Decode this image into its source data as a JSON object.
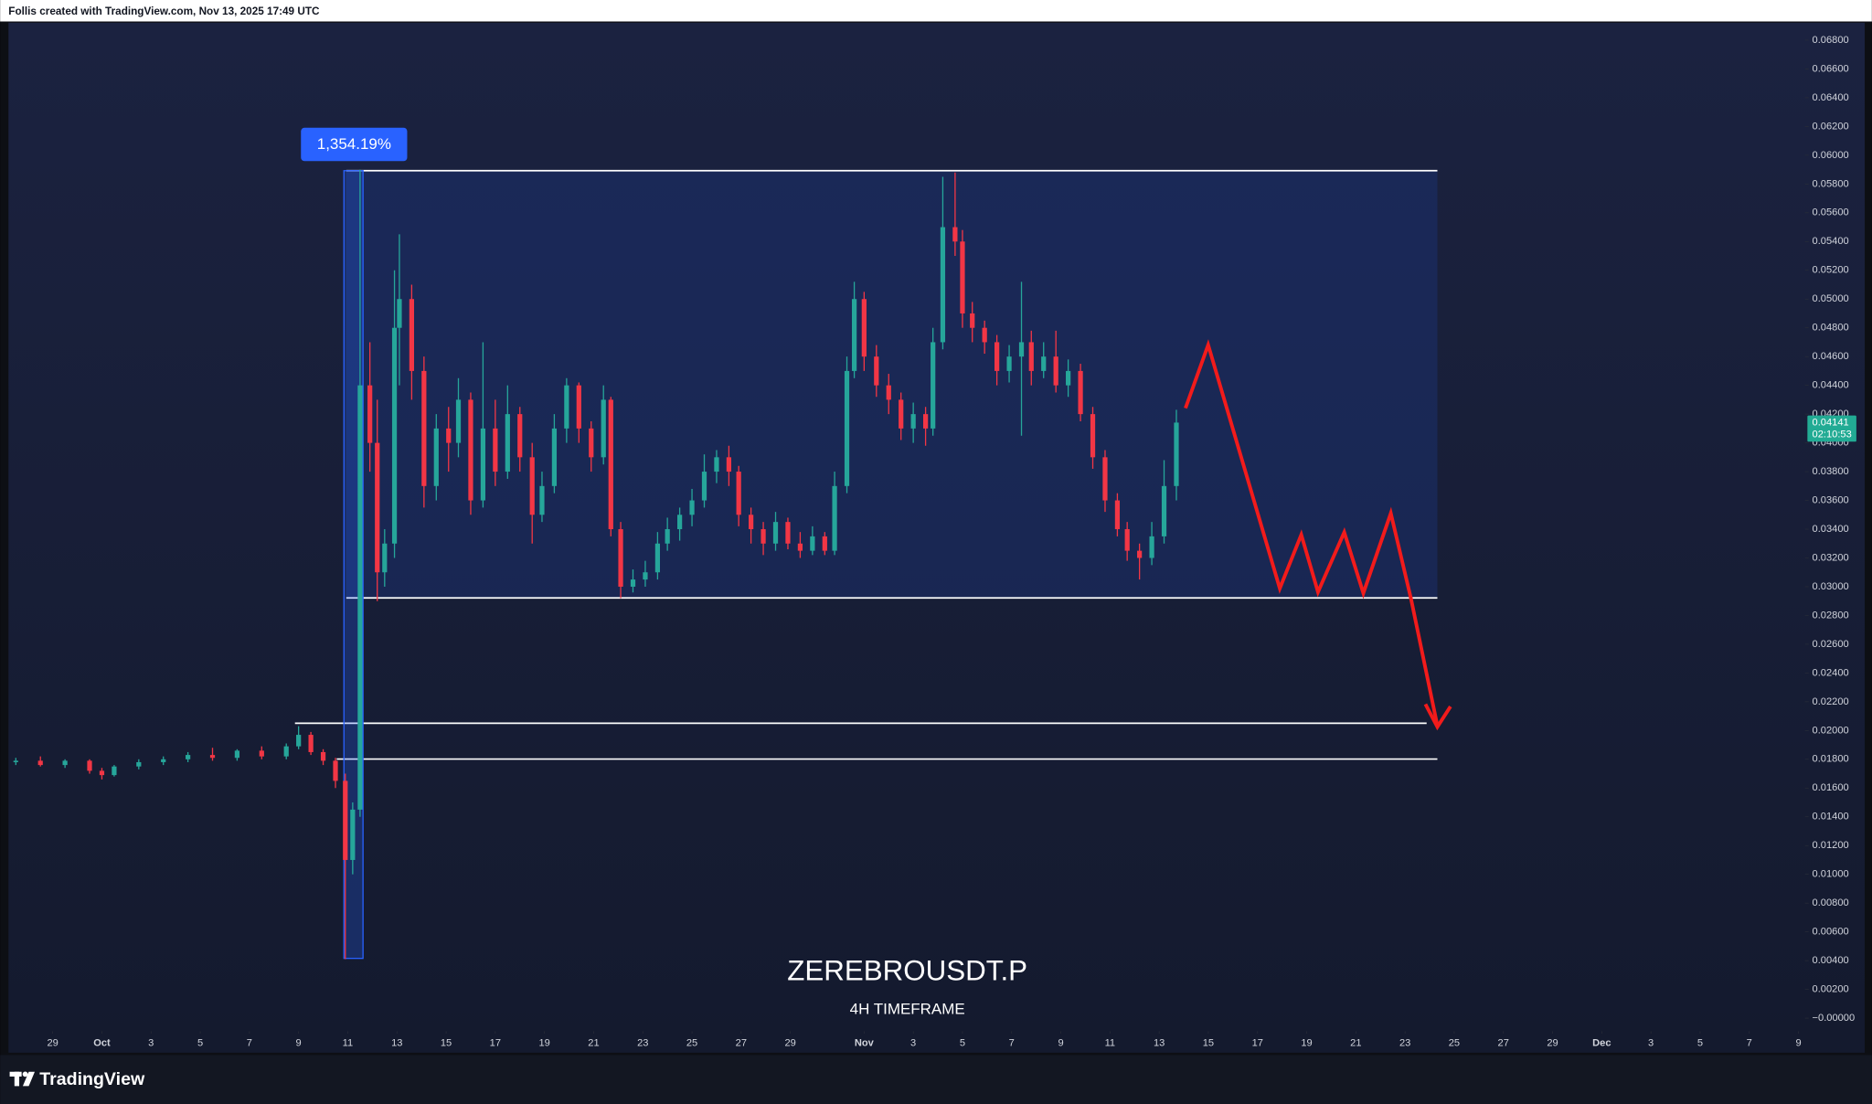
{
  "header": "Follis created with TradingView.com, Nov 13, 2025 17:49 UTC",
  "logo": "TradingView",
  "chart_data": {
    "type": "candlestick",
    "title": "ZEREBROUSDT.P",
    "subtitle": "4H TIMEFRAME",
    "annotation": "1,354.19%",
    "last_price": {
      "value": 0.04141,
      "label": "0.04141"
    },
    "countdown": "02:10:53",
    "up_color": "#26a69a",
    "down_color": "#f23645",
    "grid": false,
    "xlim": [
      -1.75,
      71.17
    ],
    "ylim": [
      -0.0024,
      0.0693
    ],
    "xticks": [
      {
        "value": 0,
        "label": "29"
      },
      {
        "value": 2,
        "label": "Oct"
      },
      {
        "value": 4,
        "label": "3"
      },
      {
        "value": 6,
        "label": "5"
      },
      {
        "value": 8,
        "label": "7"
      },
      {
        "value": 10,
        "label": "9"
      },
      {
        "value": 12,
        "label": "11"
      },
      {
        "value": 14,
        "label": "13"
      },
      {
        "value": 16,
        "label": "15"
      },
      {
        "value": 18,
        "label": "17"
      },
      {
        "value": 20,
        "label": "19"
      },
      {
        "value": 22,
        "label": "21"
      },
      {
        "value": 24,
        "label": "23"
      },
      {
        "value": 26,
        "label": "25"
      },
      {
        "value": 28,
        "label": "27"
      },
      {
        "value": 30,
        "label": "29"
      },
      {
        "value": 33,
        "label": "Nov"
      },
      {
        "value": 35,
        "label": "3"
      },
      {
        "value": 37,
        "label": "5"
      },
      {
        "value": 39,
        "label": "7"
      },
      {
        "value": 41,
        "label": "9"
      },
      {
        "value": 43,
        "label": "11"
      },
      {
        "value": 45,
        "label": "13"
      },
      {
        "value": 47,
        "label": "15"
      },
      {
        "value": 49,
        "label": "17"
      },
      {
        "value": 51,
        "label": "19"
      },
      {
        "value": 53,
        "label": "21"
      },
      {
        "value": 55,
        "label": "23"
      },
      {
        "value": 57,
        "label": "25"
      },
      {
        "value": 59,
        "label": "27"
      },
      {
        "value": 61,
        "label": "29"
      },
      {
        "value": 63,
        "label": "Dec"
      },
      {
        "value": 65,
        "label": "3"
      },
      {
        "value": 67,
        "label": "5"
      },
      {
        "value": 69,
        "label": "7"
      },
      {
        "value": 71,
        "label": "9"
      }
    ],
    "yticks": [
      {
        "value": 0.068,
        "label": "0.06800"
      },
      {
        "value": 0.066,
        "label": "0.06600"
      },
      {
        "value": 0.064,
        "label": "0.06400"
      },
      {
        "value": 0.062,
        "label": "0.06200"
      },
      {
        "value": 0.06,
        "label": "0.06000"
      },
      {
        "value": 0.058,
        "label": "0.05800"
      },
      {
        "value": 0.056,
        "label": "0.05600"
      },
      {
        "value": 0.054,
        "label": "0.05400"
      },
      {
        "value": 0.052,
        "label": "0.05200"
      },
      {
        "value": 0.05,
        "label": "0.05000"
      },
      {
        "value": 0.048,
        "label": "0.04800"
      },
      {
        "value": 0.046,
        "label": "0.04600"
      },
      {
        "value": 0.044,
        "label": "0.04400"
      },
      {
        "value": 0.042,
        "label": "0.04200"
      },
      {
        "value": 0.04,
        "label": "0.04000"
      },
      {
        "value": 0.038,
        "label": "0.03800"
      },
      {
        "value": 0.036,
        "label": "0.03600"
      },
      {
        "value": 0.034,
        "label": "0.03400"
      },
      {
        "value": 0.032,
        "label": "0.03200"
      },
      {
        "value": 0.03,
        "label": "0.03000"
      },
      {
        "value": 0.028,
        "label": "0.02800"
      },
      {
        "value": 0.026,
        "label": "0.02600"
      },
      {
        "value": 0.024,
        "label": "0.02400"
      },
      {
        "value": 0.022,
        "label": "0.02200"
      },
      {
        "value": 0.02,
        "label": "0.02000"
      },
      {
        "value": 0.018,
        "label": "0.01800"
      },
      {
        "value": 0.016,
        "label": "0.01600"
      },
      {
        "value": 0.014,
        "label": "0.01400"
      },
      {
        "value": 0.012,
        "label": "0.01200"
      },
      {
        "value": 0.01,
        "label": "0.01000"
      },
      {
        "value": 0.008,
        "label": "0.00800"
      },
      {
        "value": 0.006,
        "label": "0.00600"
      },
      {
        "value": 0.004,
        "label": "0.00400"
      },
      {
        "value": 0.002,
        "label": "0.00200"
      },
      {
        "value": 0,
        "label": "−0.00000"
      }
    ],
    "candles": [
      [
        -1.5,
        0.0178,
        0.0181,
        0.0176,
        0.0179
      ],
      [
        -0.5,
        0.0179,
        0.0182,
        0.0175,
        0.0176
      ],
      [
        0.5,
        0.0176,
        0.018,
        0.0174,
        0.0179
      ],
      [
        1.5,
        0.0179,
        0.018,
        0.017,
        0.0172
      ],
      [
        2,
        0.0172,
        0.0174,
        0.0166,
        0.0169
      ],
      [
        2.5,
        0.0169,
        0.0176,
        0.0168,
        0.0175
      ],
      [
        3.5,
        0.0175,
        0.018,
        0.0173,
        0.0178
      ],
      [
        4.5,
        0.0178,
        0.0182,
        0.0176,
        0.018
      ],
      [
        5.5,
        0.018,
        0.0185,
        0.0178,
        0.0183
      ],
      [
        6.5,
        0.0183,
        0.0188,
        0.0179,
        0.0181
      ],
      [
        7.5,
        0.0181,
        0.0187,
        0.0179,
        0.0186
      ],
      [
        8.5,
        0.0186,
        0.0189,
        0.018,
        0.0182
      ],
      [
        9.5,
        0.0182,
        0.0191,
        0.018,
        0.0189
      ],
      [
        10,
        0.0189,
        0.0203,
        0.0187,
        0.0197
      ],
      [
        10.5,
        0.0197,
        0.0199,
        0.0183,
        0.0185
      ],
      [
        11,
        0.0185,
        0.0187,
        0.0176,
        0.0179
      ],
      [
        11.5,
        0.0179,
        0.0181,
        0.016,
        0.0165
      ],
      [
        11.9,
        0.0165,
        0.017,
        0.0041,
        0.011
      ],
      [
        12.2,
        0.011,
        0.015,
        0.01,
        0.0145
      ],
      [
        12.5,
        0.0145,
        0.059,
        0.014,
        0.044
      ],
      [
        12.9,
        0.044,
        0.047,
        0.038,
        0.04
      ],
      [
        13.2,
        0.04,
        0.043,
        0.029,
        0.031
      ],
      [
        13.5,
        0.031,
        0.034,
        0.03,
        0.033
      ],
      [
        13.9,
        0.033,
        0.052,
        0.032,
        0.048
      ],
      [
        14.1,
        0.048,
        0.0545,
        0.044,
        0.05
      ],
      [
        14.6,
        0.05,
        0.051,
        0.043,
        0.045
      ],
      [
        15.1,
        0.045,
        0.046,
        0.0355,
        0.037
      ],
      [
        15.6,
        0.037,
        0.042,
        0.036,
        0.041
      ],
      [
        16.1,
        0.041,
        0.0425,
        0.038,
        0.04
      ],
      [
        16.5,
        0.04,
        0.0445,
        0.039,
        0.043
      ],
      [
        17.0,
        0.043,
        0.0435,
        0.035,
        0.036
      ],
      [
        17.5,
        0.036,
        0.047,
        0.0355,
        0.041
      ],
      [
        18.0,
        0.041,
        0.043,
        0.037,
        0.038
      ],
      [
        18.5,
        0.038,
        0.044,
        0.0375,
        0.042
      ],
      [
        19.0,
        0.042,
        0.0425,
        0.038,
        0.039
      ],
      [
        19.5,
        0.039,
        0.04,
        0.033,
        0.035
      ],
      [
        19.9,
        0.035,
        0.038,
        0.0345,
        0.037
      ],
      [
        20.4,
        0.037,
        0.042,
        0.0365,
        0.041
      ],
      [
        20.9,
        0.041,
        0.0445,
        0.04,
        0.044
      ],
      [
        21.4,
        0.044,
        0.0442,
        0.04,
        0.041
      ],
      [
        21.9,
        0.041,
        0.0415,
        0.038,
        0.039
      ],
      [
        22.4,
        0.039,
        0.044,
        0.0385,
        0.043
      ],
      [
        22.7,
        0.043,
        0.0432,
        0.0335,
        0.034
      ],
      [
        23.1,
        0.034,
        0.0345,
        0.0292,
        0.03
      ],
      [
        23.6,
        0.03,
        0.0312,
        0.0296,
        0.0305
      ],
      [
        24.1,
        0.0305,
        0.0318,
        0.03,
        0.031
      ],
      [
        24.6,
        0.031,
        0.0338,
        0.0305,
        0.033
      ],
      [
        25.0,
        0.033,
        0.0348,
        0.0325,
        0.034
      ],
      [
        25.5,
        0.034,
        0.0355,
        0.0332,
        0.035
      ],
      [
        26.0,
        0.035,
        0.0368,
        0.0342,
        0.036
      ],
      [
        26.5,
        0.036,
        0.0392,
        0.0355,
        0.038
      ],
      [
        27.0,
        0.038,
        0.0395,
        0.0372,
        0.039
      ],
      [
        27.5,
        0.039,
        0.0398,
        0.037,
        0.038
      ],
      [
        27.9,
        0.038,
        0.0384,
        0.0342,
        0.035
      ],
      [
        28.4,
        0.035,
        0.0355,
        0.033,
        0.034
      ],
      [
        28.9,
        0.034,
        0.0345,
        0.0322,
        0.033
      ],
      [
        29.4,
        0.033,
        0.0352,
        0.0325,
        0.0345
      ],
      [
        29.9,
        0.0345,
        0.0348,
        0.0326,
        0.033
      ],
      [
        30.4,
        0.033,
        0.0338,
        0.032,
        0.0325
      ],
      [
        30.9,
        0.0325,
        0.0342,
        0.0322,
        0.0335
      ],
      [
        31.4,
        0.0335,
        0.0338,
        0.0322,
        0.0325
      ],
      [
        31.8,
        0.0325,
        0.038,
        0.0322,
        0.037
      ],
      [
        32.3,
        0.037,
        0.046,
        0.0365,
        0.045
      ],
      [
        32.6,
        0.045,
        0.0512,
        0.0445,
        0.05
      ],
      [
        33.0,
        0.05,
        0.0505,
        0.045,
        0.046
      ],
      [
        33.5,
        0.046,
        0.0468,
        0.0432,
        0.044
      ],
      [
        34.0,
        0.044,
        0.0448,
        0.042,
        0.043
      ],
      [
        34.5,
        0.043,
        0.0435,
        0.0402,
        0.041
      ],
      [
        35.0,
        0.041,
        0.0428,
        0.04,
        0.042
      ],
      [
        35.5,
        0.042,
        0.0425,
        0.0398,
        0.041
      ],
      [
        35.8,
        0.041,
        0.048,
        0.0405,
        0.047
      ],
      [
        36.2,
        0.047,
        0.0585,
        0.0465,
        0.055
      ],
      [
        36.7,
        0.055,
        0.0588,
        0.053,
        0.054
      ],
      [
        37.0,
        0.054,
        0.0548,
        0.048,
        0.049
      ],
      [
        37.4,
        0.049,
        0.0498,
        0.047,
        0.048
      ],
      [
        37.9,
        0.048,
        0.0485,
        0.0462,
        0.047
      ],
      [
        38.4,
        0.047,
        0.0475,
        0.044,
        0.045
      ],
      [
        38.9,
        0.045,
        0.0468,
        0.0442,
        0.046
      ],
      [
        39.4,
        0.046,
        0.0512,
        0.0405,
        0.047
      ],
      [
        39.8,
        0.047,
        0.0478,
        0.044,
        0.045
      ],
      [
        40.3,
        0.045,
        0.047,
        0.0445,
        0.046
      ],
      [
        40.8,
        0.046,
        0.0478,
        0.0435,
        0.044
      ],
      [
        41.3,
        0.044,
        0.0458,
        0.0432,
        0.045
      ],
      [
        41.8,
        0.045,
        0.0455,
        0.0415,
        0.042
      ],
      [
        42.3,
        0.042,
        0.0425,
        0.0382,
        0.039
      ],
      [
        42.8,
        0.039,
        0.0395,
        0.0352,
        0.036
      ],
      [
        43.3,
        0.036,
        0.0365,
        0.0335,
        0.034
      ],
      [
        43.7,
        0.034,
        0.0345,
        0.0318,
        0.0325
      ],
      [
        44.2,
        0.0325,
        0.033,
        0.0305,
        0.032
      ],
      [
        44.7,
        0.032,
        0.0345,
        0.0315,
        0.0335
      ],
      [
        45.2,
        0.0335,
        0.0388,
        0.033,
        0.037
      ],
      [
        45.7,
        0.037,
        0.0423,
        0.036,
        0.04141
      ]
    ]
  }
}
